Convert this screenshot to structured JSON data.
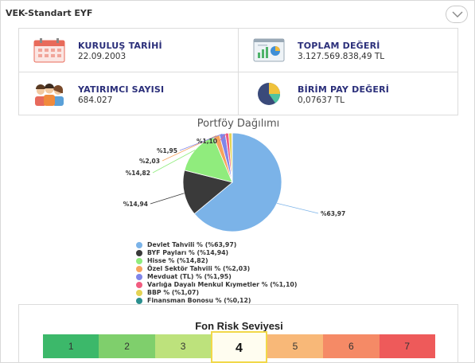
{
  "header": {
    "title": "VEK-Standart EYF",
    "collapse_icon": "chevron-down-icon"
  },
  "info": {
    "founding_date": {
      "label": "KURULUŞ TARİHİ",
      "value": "22.09.2003",
      "icon": "calendar-icon"
    },
    "total_value": {
      "label": "TOPLAM DEĞERİ",
      "value": "3.127.569.838,49 TL",
      "icon": "chart-dashboard-icon"
    },
    "investor_count": {
      "label": "YATIRIMCI SAYISI",
      "value": "684.027",
      "icon": "people-icon"
    },
    "unit_value": {
      "label": "BİRİM PAY DEĞERİ",
      "value": "0,07637 TL",
      "icon": "pie-chart-icon"
    }
  },
  "portfolio": {
    "title": "Portföy Dağılımı"
  },
  "chart_data": {
    "type": "pie",
    "title": "Portföy Dağılımı",
    "slices": [
      {
        "label": "Devlet Tahvili % (%63,97)",
        "value": 63.97,
        "data_label": "%63,97",
        "color": "#7bb3e8"
      },
      {
        "label": "BYF Payları % (%14,94)",
        "value": 14.94,
        "data_label": "%14,94",
        "color": "#3a3a3a"
      },
      {
        "label": "Hisse % (%14,82)",
        "value": 14.82,
        "data_label": "%14,82",
        "color": "#90ec7d"
      },
      {
        "label": "Özel Sektör Tahvili % (%2,03)",
        "value": 2.03,
        "data_label": "%2,03",
        "color": "#f7a35c"
      },
      {
        "label": "Mevduat (TL) % (%1,95)",
        "value": 1.95,
        "data_label": "%1,95",
        "color": "#8085e9"
      },
      {
        "label": "Varlığa Dayalı Menkul Kıymetler % (%1,10)",
        "value": 1.1,
        "data_label": "%1,10",
        "color": "#f15c80"
      },
      {
        "label": "BBP % (%1,07)",
        "value": 1.07,
        "data_label": "",
        "color": "#e4d354"
      },
      {
        "label": "Finansman Bonosu % (%0,12)",
        "value": 0.12,
        "data_label": "",
        "color": "#2b908f"
      }
    ]
  },
  "risk": {
    "title": "Fon Risk Seviyesi",
    "levels": [
      "1",
      "2",
      "3",
      "4",
      "5",
      "6",
      "7"
    ],
    "colors": [
      "#3cb86a",
      "#7fcf6c",
      "#bde27c",
      "#fffdf0",
      "#f8b878",
      "#f58a66",
      "#ee5a5a"
    ],
    "active_level": 4
  }
}
